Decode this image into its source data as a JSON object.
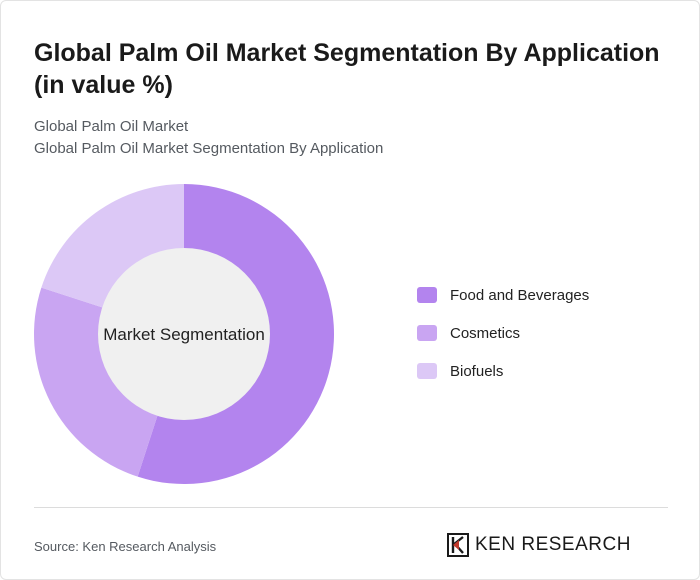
{
  "header": {
    "title": "Global Palm Oil Market Segmentation By Application (in value %)",
    "subtitle_line1": "Global Palm Oil Market",
    "subtitle_line2": "Global Palm Oil Market Segmentation By Application"
  },
  "chart_data": {
    "type": "pie",
    "donut": true,
    "center_label": "Market Segmentation",
    "categories": [
      "Food and Beverages",
      "Cosmetics",
      "Biofuels"
    ],
    "values": [
      55,
      25,
      20
    ],
    "colors": [
      "#b384ee",
      "#c9a5f2",
      "#dcc8f6"
    ],
    "legend_position": "right"
  },
  "footer": {
    "source": "Source: Ken Research Analysis",
    "logo_text": "KEN RESEARCH",
    "logo_mark_icon": "ken-research-logo-icon"
  }
}
